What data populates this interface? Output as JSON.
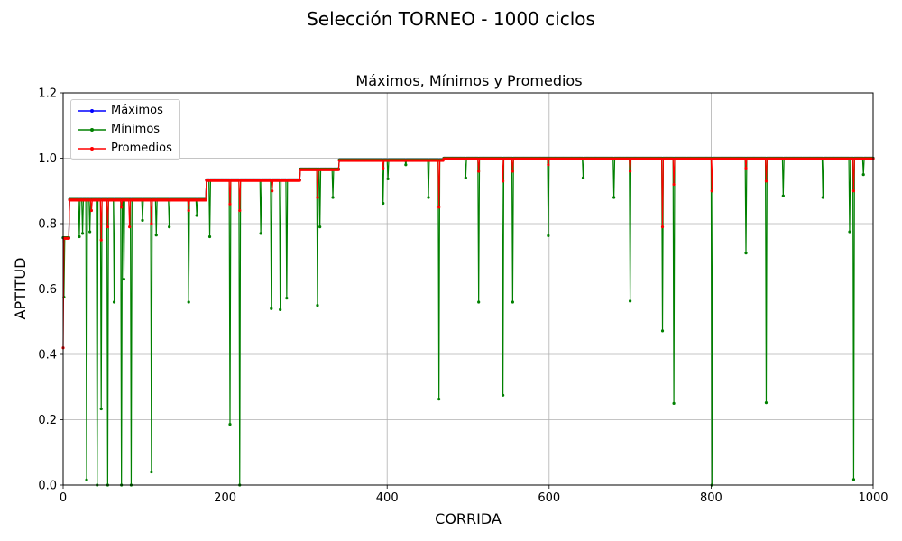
{
  "figure": {
    "suptitle": "Selección TORNEO - 1000 ciclos"
  },
  "chart_data": {
    "type": "line",
    "title": "Máximos, Mínimos y Promedios",
    "xlabel": "CORRIDA",
    "ylabel": "APTITUD",
    "xlim": [
      0,
      1000
    ],
    "ylim": [
      0,
      1.2
    ],
    "xticks": [
      "0",
      "200",
      "400",
      "600",
      "800",
      "1000"
    ],
    "yticks": [
      "0.0",
      "0.2",
      "0.4",
      "0.6",
      "0.8",
      "1.0",
      "1.2"
    ],
    "grid": true,
    "legend_position": "top-left",
    "colors": {
      "Máximos": "#0000ff",
      "Mínimos": "#008000",
      "Promedios": "#ff0000"
    },
    "series": [
      {
        "name": "Máximos",
        "steps": [
          [
            0,
            0.757
          ],
          [
            8,
            0.874
          ],
          [
            177,
            0.934
          ],
          [
            293,
            0.967
          ],
          [
            341,
            0.995
          ],
          [
            470,
            1.0
          ]
        ]
      },
      {
        "name": "Mínimos",
        "drops": [
          [
            1,
            0.575
          ],
          [
            20,
            0.76
          ],
          [
            24,
            0.77
          ],
          [
            29,
            0.016
          ],
          [
            33,
            0.775
          ],
          [
            42,
            0.0
          ],
          [
            47,
            0.233
          ],
          [
            55,
            0.0
          ],
          [
            63,
            0.56
          ],
          [
            72,
            0.0
          ],
          [
            75,
            0.63
          ],
          [
            84,
            0.0
          ],
          [
            98,
            0.81
          ],
          [
            109,
            0.04
          ],
          [
            115,
            0.765
          ],
          [
            131,
            0.79
          ],
          [
            155,
            0.56
          ],
          [
            165,
            0.825
          ],
          [
            181,
            0.76
          ],
          [
            206,
            0.186
          ],
          [
            218,
            0.0
          ],
          [
            244,
            0.77
          ],
          [
            257,
            0.54
          ],
          [
            268,
            0.537
          ],
          [
            276,
            0.572
          ],
          [
            314,
            0.55
          ],
          [
            317,
            0.79
          ],
          [
            333,
            0.88
          ],
          [
            395,
            0.862
          ],
          [
            401,
            0.937
          ],
          [
            423,
            0.98
          ],
          [
            451,
            0.88
          ],
          [
            464,
            0.263
          ],
          [
            497,
            0.94
          ],
          [
            513,
            0.56
          ],
          [
            543,
            0.275
          ],
          [
            555,
            0.56
          ],
          [
            599,
            0.763
          ],
          [
            642,
            0.94
          ],
          [
            680,
            0.88
          ],
          [
            700,
            0.563
          ],
          [
            740,
            0.472
          ],
          [
            754,
            0.25
          ],
          [
            801,
            0.0
          ],
          [
            843,
            0.71
          ],
          [
            868,
            0.252
          ],
          [
            889,
            0.885
          ],
          [
            938,
            0.88
          ],
          [
            971,
            0.775
          ],
          [
            976,
            0.017
          ],
          [
            988,
            0.95
          ]
        ]
      },
      {
        "name": "Promedios",
        "drops": [
          [
            0,
            0.42
          ],
          [
            35,
            0.84
          ],
          [
            47,
            0.75
          ],
          [
            55,
            0.79
          ],
          [
            72,
            0.85
          ],
          [
            82,
            0.79
          ],
          [
            109,
            0.8
          ],
          [
            155,
            0.84
          ],
          [
            206,
            0.86
          ],
          [
            218,
            0.84
          ],
          [
            258,
            0.9
          ],
          [
            314,
            0.88
          ],
          [
            395,
            0.97
          ],
          [
            464,
            0.85
          ],
          [
            513,
            0.96
          ],
          [
            543,
            0.93
          ],
          [
            555,
            0.96
          ],
          [
            599,
            0.98
          ],
          [
            700,
            0.96
          ],
          [
            740,
            0.79
          ],
          [
            754,
            0.92
          ],
          [
            801,
            0.9
          ],
          [
            843,
            0.97
          ],
          [
            868,
            0.93
          ],
          [
            976,
            0.9
          ]
        ]
      }
    ]
  }
}
